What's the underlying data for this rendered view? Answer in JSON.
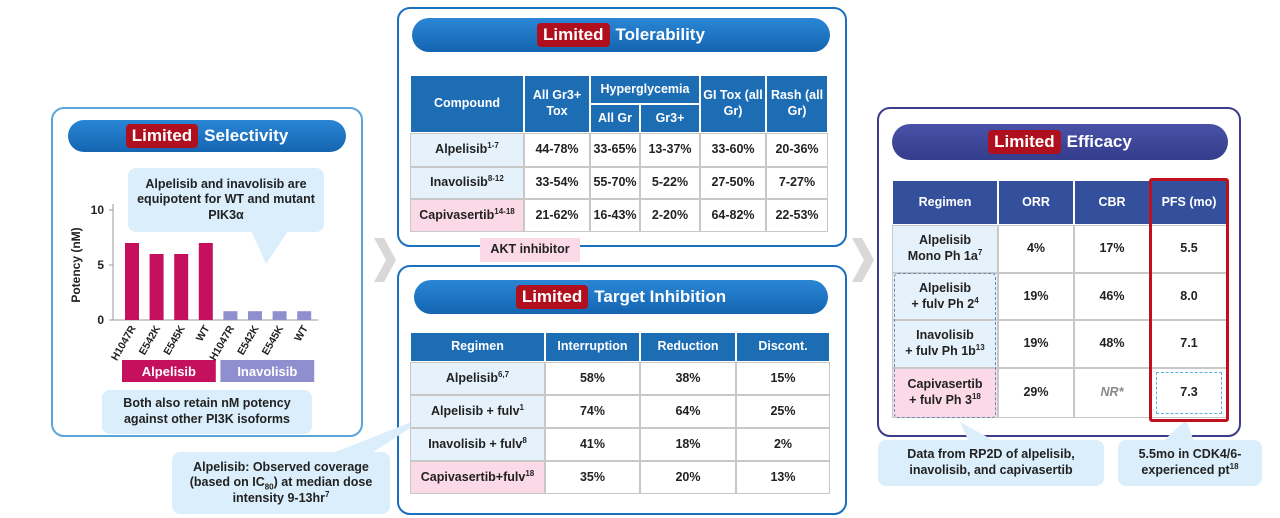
{
  "selectivity": {
    "header": {
      "tag": "Limited",
      "title": "Selectivity"
    },
    "callout": "Alpelisib and inavolisib are equipotent for WT and mutant PIK3α",
    "note": "Both also retain nM potency against other PI3K isoforms",
    "chart_data": {
      "type": "bar",
      "y_label": "Potency (nM)",
      "ylim": [
        0,
        10
      ],
      "yticks": [
        0,
        5,
        10
      ],
      "series": [
        {
          "name": "Alpelisib",
          "color": "#c5105e",
          "categories": [
            "H1047R",
            "E542K",
            "E545K",
            "WT"
          ],
          "values": [
            7,
            6,
            6,
            7
          ]
        },
        {
          "name": "Inavolisib",
          "color": "#8f8fd0",
          "categories": [
            "H1047R",
            "E542K",
            "E545K",
            "WT"
          ],
          "values": [
            0.8,
            0.8,
            0.8,
            0.8
          ]
        }
      ]
    }
  },
  "tolerability": {
    "header": {
      "tag": "Limited",
      "title": "Tolerability"
    },
    "columns": [
      "Compound",
      "All Gr3+ Tox",
      "Hyperglycemia",
      "All Gr",
      "Gr3+",
      "GI Tox (all Gr)",
      "Rash (all Gr)"
    ],
    "rows": [
      {
        "name": "Alpelisib",
        "sup": "1-7",
        "values": [
          "44-78%",
          "33-65%",
          "13-37%",
          "33-60%",
          "20-36%"
        ]
      },
      {
        "name": "Inavolisib",
        "sup": "8-12",
        "values": [
          "33-54%",
          "55-70%",
          "5-22%",
          "27-50%",
          "7-27%"
        ]
      },
      {
        "name": "Capivasertib",
        "sup": "14-18",
        "values": [
          "21-62%",
          "16-43%",
          "2-20%",
          "64-82%",
          "22-53%"
        ]
      }
    ],
    "label": "AKT inhibitor"
  },
  "inhibition": {
    "header": {
      "tag": "Limited",
      "title": "Target Inhibition"
    },
    "columns": [
      "Regimen",
      "Interruption",
      "Reduction",
      "Discont."
    ],
    "rows": [
      {
        "name": "Alpelisib",
        "sup": "6,7",
        "values": [
          "58%",
          "38%",
          "15%"
        ]
      },
      {
        "name": "Alpelisib + fulv",
        "sup": "1",
        "values": [
          "74%",
          "64%",
          "25%"
        ]
      },
      {
        "name": "Inavolisib + fulv",
        "sup": "8",
        "values": [
          "41%",
          "18%",
          "2%"
        ]
      },
      {
        "name": "Capivasertib+fulv",
        "sup": "18",
        "values": [
          "35%",
          "20%",
          "13%"
        ]
      }
    ],
    "note": [
      "Alpelisib: Observed coverage (based on IC",
      "80",
      ") at median dose intensity 9-13hr",
      "7"
    ]
  },
  "efficacy": {
    "header": {
      "tag": "Limited",
      "title": "Efficacy"
    },
    "columns": [
      "Regimen",
      "ORR",
      "CBR",
      "PFS (mo)"
    ],
    "rows": [
      {
        "lines": [
          "Alpelisib",
          "Mono Ph 1a"
        ],
        "sup": "7",
        "values": [
          "4%",
          "17%",
          "5.5"
        ]
      },
      {
        "lines": [
          "Alpelisib",
          "+ fulv Ph 2"
        ],
        "sup": "4",
        "values": [
          "19%",
          "46%",
          "8.0"
        ]
      },
      {
        "lines": [
          "Inavolisib",
          "+ fulv Ph 1b"
        ],
        "sup": "13",
        "values": [
          "19%",
          "48%",
          "7.1"
        ]
      },
      {
        "lines": [
          "Capivasertib",
          "+ fulv Ph 3"
        ],
        "sup": "18",
        "values": [
          "29%",
          "NR*",
          "7.3"
        ]
      }
    ],
    "note": "Data from RP2D of alpelisib, inavolisib, and capivasertib",
    "pfs_note": {
      "text": "5.5mo in CDK4/6-experienced pt",
      "sup": "18"
    }
  }
}
